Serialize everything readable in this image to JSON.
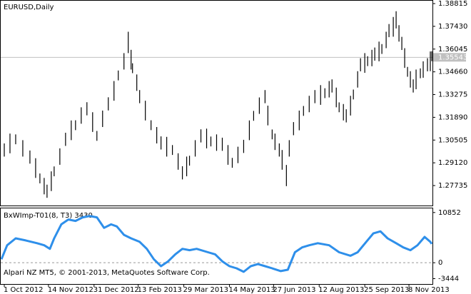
{
  "chart_data": [
    {
      "type": "ohlc",
      "title": "EURUSD,Daily",
      "color": "#000000",
      "xlim": [
        -1.5,
        301.5
      ],
      "ylim": [
        1.2652,
        1.3899
      ],
      "yticks": [
        1.38815,
        {
          "value": 1.3743,
          "label": "1.37430"
        },
        1.36045,
        {
          "value": 1.3466,
          "label": "1.34660"
        },
        1.33275,
        {
          "value": 1.3189,
          "label": "1.31890"
        },
        1.30505,
        {
          "value": 1.2912,
          "label": "1.29120"
        },
        1.27735
      ],
      "current_price": 1.35543,
      "x": [
        1,
        5,
        9,
        14,
        19,
        23,
        26,
        29,
        31,
        34,
        36,
        40,
        44,
        48,
        51,
        55,
        59,
        63,
        66,
        70,
        74,
        78,
        81,
        85,
        88,
        90,
        91,
        94,
        96,
        100,
        104,
        108,
        111,
        115,
        119,
        123,
        126,
        129,
        131,
        135,
        139,
        143,
        146,
        150,
        154,
        158,
        161,
        165,
        169,
        173,
        176,
        180,
        184,
        186,
        189,
        191,
        194,
        196,
        199,
        201,
        204,
        208,
        211,
        215,
        219,
        223,
        226,
        229,
        231,
        234,
        236,
        239,
        241,
        244,
        246,
        249,
        251,
        254,
        256,
        259,
        261,
        264,
        266,
        269,
        271,
        274,
        276,
        278,
        280,
        282,
        284,
        286,
        288,
        290,
        293,
        295,
        298,
        300,
        301
      ],
      "high": [
        1.303,
        1.309,
        1.3085,
        1.305,
        1.2987,
        1.294,
        1.2847,
        1.282,
        1.2779,
        1.286,
        1.289,
        1.3,
        1.3095,
        1.317,
        1.3171,
        1.325,
        1.3281,
        1.322,
        1.3106,
        1.323,
        1.3311,
        1.341,
        1.3474,
        1.358,
        1.371,
        1.36,
        1.3518,
        1.345,
        1.3355,
        1.329,
        1.3171,
        1.313,
        1.3073,
        1.307,
        1.302,
        1.297,
        1.2891,
        1.295,
        1.2955,
        1.305,
        1.3116,
        1.312,
        1.3072,
        1.3085,
        1.3065,
        1.302,
        1.2942,
        1.301,
        1.3052,
        1.317,
        1.3228,
        1.331,
        1.3355,
        1.326,
        1.3115,
        1.309,
        1.303,
        1.299,
        1.2899,
        1.305,
        1.316,
        1.323,
        1.3258,
        1.332,
        1.3355,
        1.3385,
        1.3366,
        1.341,
        1.342,
        1.337,
        1.328,
        1.327,
        1.3238,
        1.332,
        1.3358,
        1.347,
        1.3549,
        1.358,
        1.3561,
        1.36,
        1.3614,
        1.365,
        1.3635,
        1.371,
        1.3757,
        1.38,
        1.3835,
        1.375,
        1.3679,
        1.361,
        1.3496,
        1.347,
        1.342,
        1.348,
        1.3487,
        1.353,
        1.3549,
        1.359,
        1.3591
      ],
      "low": [
        1.295,
        1.297,
        1.3025,
        1.295,
        1.2907,
        1.282,
        1.2787,
        1.272,
        1.2699,
        1.274,
        1.283,
        1.29,
        1.3015,
        1.305,
        1.3111,
        1.315,
        1.3201,
        1.31,
        1.3046,
        1.313,
        1.3231,
        1.329,
        1.3414,
        1.348,
        1.358,
        1.348,
        1.3458,
        1.335,
        1.3275,
        1.317,
        1.3111,
        1.303,
        1.2993,
        1.295,
        1.296,
        1.287,
        1.2811,
        1.283,
        1.2895,
        1.295,
        1.3036,
        1.3,
        1.3012,
        1.2985,
        1.2985,
        1.29,
        1.2882,
        1.291,
        1.2972,
        1.305,
        1.3168,
        1.321,
        1.3275,
        1.314,
        1.3055,
        1.299,
        1.295,
        1.287,
        1.277,
        1.295,
        1.308,
        1.311,
        1.3198,
        1.322,
        1.3275,
        1.3265,
        1.3306,
        1.331,
        1.334,
        1.325,
        1.322,
        1.317,
        1.3158,
        1.32,
        1.3298,
        1.337,
        1.3469,
        1.346,
        1.3501,
        1.35,
        1.3534,
        1.353,
        1.3575,
        1.361,
        1.3677,
        1.368,
        1.373,
        1.365,
        1.3599,
        1.349,
        1.3436,
        1.337,
        1.334,
        1.336,
        1.3427,
        1.343,
        1.3469,
        1.347,
        1.3531
      ]
    },
    {
      "type": "line",
      "title": "BxWImp-T01(8, T3) 3430",
      "color": "#2e8fea",
      "annotation": "Alpari NZ MT5, © 2001-2013, MetaQuotes Software Corp.",
      "xlim": [
        -1.5,
        301.5
      ],
      "ylim": [
        -4600,
        11750
      ],
      "yticks": [
        10852,
        0,
        -3444
      ],
      "xticks": [
        {
          "value": 1,
          "label": "1 Oct 2012"
        },
        {
          "value": 32,
          "label": "14 Nov 2012"
        },
        {
          "value": 64,
          "label": "31 Dec 2012"
        },
        {
          "value": 95,
          "label": "13 Feb 2013"
        },
        {
          "value": 127,
          "label": "29 Mar 2013"
        },
        {
          "value": 159,
          "label": "14 May 2013"
        },
        {
          "value": 190,
          "label": "27 Jun 2013"
        },
        {
          "value": 222,
          "label": "12 Aug 2013"
        },
        {
          "value": 254,
          "label": "25 Sep 2013"
        },
        {
          "value": 285,
          "label": "8 Nov 2013"
        }
      ],
      "x": [
        -1,
        3,
        9,
        16,
        24,
        29,
        33,
        36,
        41,
        46,
        51,
        56,
        61,
        66,
        71,
        76,
        80,
        85,
        90,
        96,
        101,
        106,
        111,
        116,
        121,
        126,
        131,
        136,
        144,
        149,
        154,
        159,
        164,
        169,
        174,
        179,
        184,
        189,
        195,
        200,
        205,
        210,
        215,
        221,
        229,
        236,
        244,
        249,
        255,
        260,
        265,
        270,
        276,
        281,
        286,
        291,
        296,
        300,
        301
      ],
      "values": [
        750,
        3770,
        5270,
        4820,
        4220,
        3770,
        3010,
        5270,
        8290,
        9340,
        9040,
        9800,
        10100,
        9800,
        7540,
        8290,
        7840,
        6030,
        5270,
        4520,
        3010,
        750,
        -750,
        300,
        1810,
        3010,
        2710,
        3010,
        2260,
        1810,
        300,
        -750,
        -1210,
        -1960,
        -750,
        -300,
        -750,
        -1210,
        -1810,
        -1510,
        2260,
        3320,
        3770,
        4220,
        3770,
        2260,
        1510,
        2260,
        4520,
        6330,
        6780,
        5270,
        4220,
        3320,
        2710,
        3770,
        5580,
        4520,
        4070
      ]
    }
  ]
}
